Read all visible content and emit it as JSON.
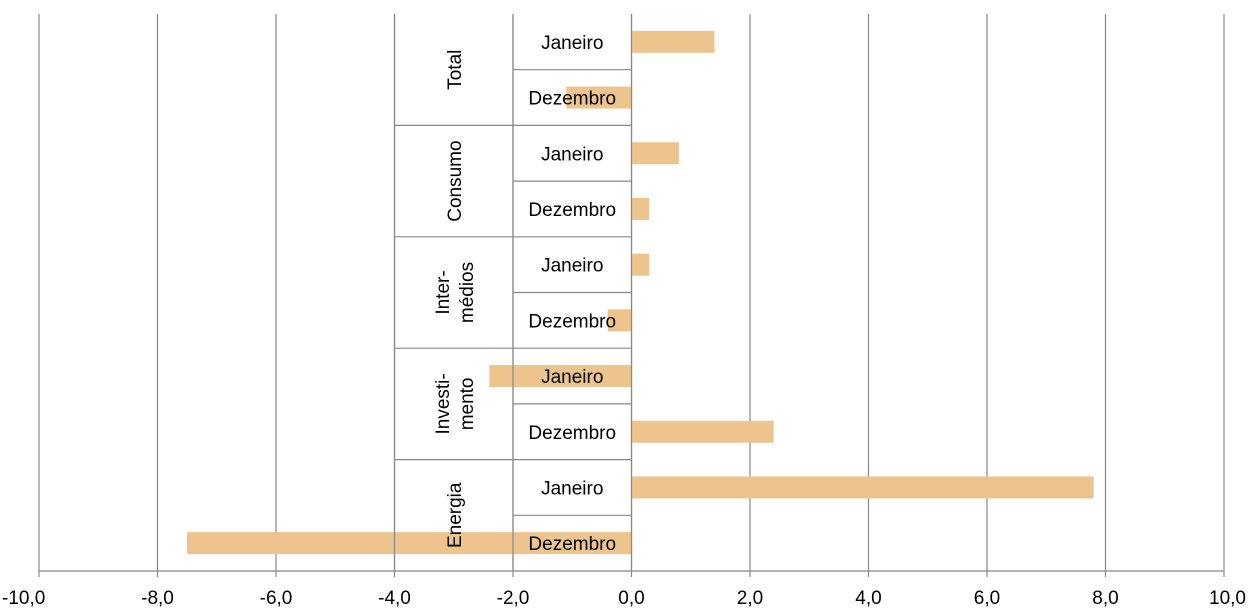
{
  "chart_data": {
    "type": "bar",
    "orientation": "horizontal",
    "title": "",
    "xlabel": "",
    "ylabel": "",
    "xlim": [
      -10,
      10
    ],
    "x_ticks": [
      "-10,0",
      "-8,0",
      "-6,0",
      "-4,0",
      "-2,0",
      "0,0",
      "2,0",
      "4,0",
      "6,0",
      "8,0",
      "10,0"
    ],
    "grid": "vertical",
    "bar_color": "#EDC48E",
    "grid_color": "#888888",
    "groups": [
      {
        "name": [
          "Total"
        ],
        "rows": [
          {
            "label": "Janeiro",
            "value": 1.4
          },
          {
            "label": "Dezembro",
            "value": -1.1
          }
        ]
      },
      {
        "name": [
          "Consumo"
        ],
        "rows": [
          {
            "label": "Janeiro",
            "value": 0.8
          },
          {
            "label": "Dezembro",
            "value": 0.3
          }
        ]
      },
      {
        "name": [
          "Inter-",
          "médios"
        ],
        "rows": [
          {
            "label": "Janeiro",
            "value": 0.3
          },
          {
            "label": "Dezembro",
            "value": -0.4
          }
        ]
      },
      {
        "name": [
          "Investi-",
          "mento"
        ],
        "rows": [
          {
            "label": "Janeiro",
            "value": -2.4
          },
          {
            "label": "Dezembro",
            "value": 2.4
          }
        ]
      },
      {
        "name": [
          "Energia"
        ],
        "rows": [
          {
            "label": "Janeiro",
            "value": 7.8
          },
          {
            "label": "Dezembro",
            "value": -7.5
          }
        ]
      }
    ]
  }
}
